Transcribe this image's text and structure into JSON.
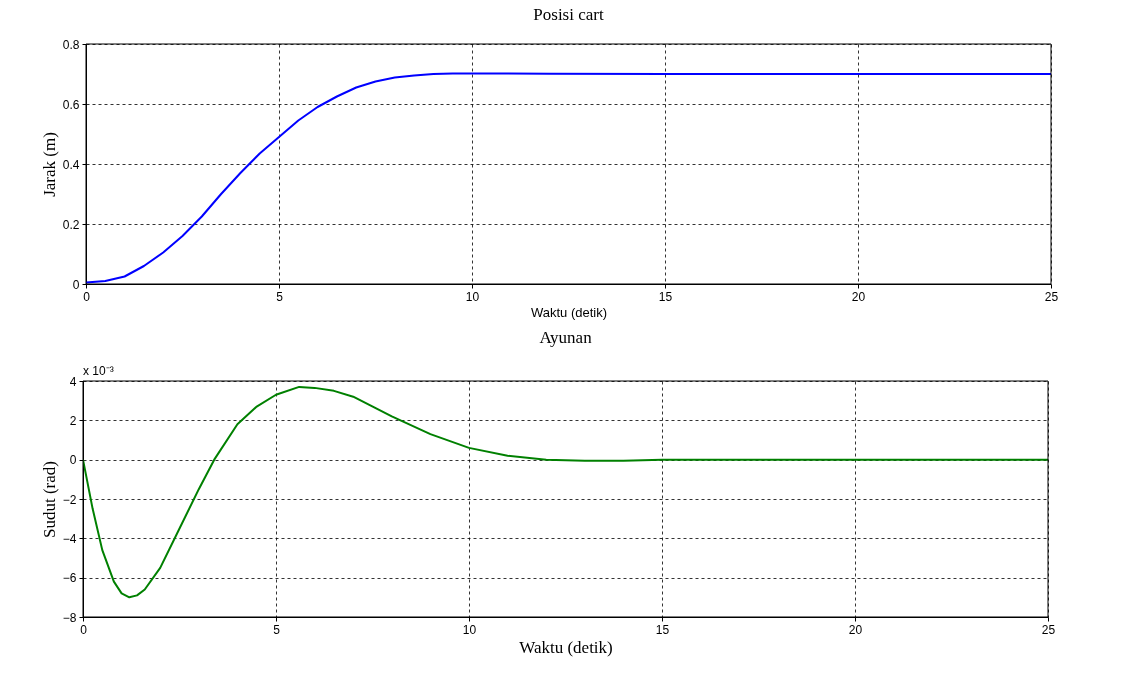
{
  "chart_data": [
    {
      "type": "line",
      "title": "Posisi cart",
      "xlabel": "Waktu (detik)",
      "ylabel": "Jarak (m)",
      "xlim": [
        0,
        25
      ],
      "ylim": [
        0,
        0.8
      ],
      "xticks": [
        0,
        5,
        10,
        15,
        20,
        25
      ],
      "yticks": [
        0,
        0.2,
        0.4,
        0.6,
        0.8
      ],
      "grid": true,
      "series": [
        {
          "color": "#0000ff",
          "x": [
            0,
            0.5,
            1,
            1.5,
            2,
            2.5,
            3,
            3.5,
            4,
            4.5,
            5,
            5.5,
            6,
            6.5,
            7,
            7.5,
            8,
            8.5,
            9,
            9.5,
            10,
            12,
            15,
            18,
            20,
            22,
            25
          ],
          "values": [
            0.005,
            0.01,
            0.025,
            0.06,
            0.105,
            0.16,
            0.225,
            0.3,
            0.37,
            0.435,
            0.49,
            0.545,
            0.59,
            0.625,
            0.655,
            0.675,
            0.688,
            0.695,
            0.7,
            0.702,
            0.702,
            0.701,
            0.7,
            0.7,
            0.7,
            0.7,
            0.7
          ]
        }
      ]
    },
    {
      "type": "line",
      "title": "Ayunan",
      "xlabel": "Waktu (detik)",
      "ylabel": "Sudut (rad)",
      "xlim": [
        0,
        25
      ],
      "ylim": [
        -8,
        4
      ],
      "xticks": [
        0,
        5,
        10,
        15,
        20,
        25
      ],
      "yticks": [
        -8,
        -6,
        -4,
        -2,
        0,
        2,
        4
      ],
      "grid": true,
      "annotations": [
        "x 10⁻³"
      ],
      "series": [
        {
          "color": "#008000",
          "x": [
            0,
            0.25,
            0.5,
            0.8,
            1,
            1.2,
            1.4,
            1.6,
            2,
            2.5,
            3,
            3.4,
            4,
            4.5,
            5,
            5.6,
            6,
            6.5,
            7,
            8,
            9,
            10,
            11,
            12,
            13,
            14,
            15,
            20,
            25
          ],
          "values": [
            0,
            -2.5,
            -4.6,
            -6.2,
            -6.8,
            -7,
            -6.9,
            -6.6,
            -5.5,
            -3.5,
            -1.5,
            0,
            1.8,
            2.7,
            3.3,
            3.7,
            3.65,
            3.5,
            3.2,
            2.2,
            1.3,
            0.6,
            0.2,
            0,
            -0.05,
            -0.05,
            0,
            0,
            0
          ]
        }
      ]
    }
  ]
}
